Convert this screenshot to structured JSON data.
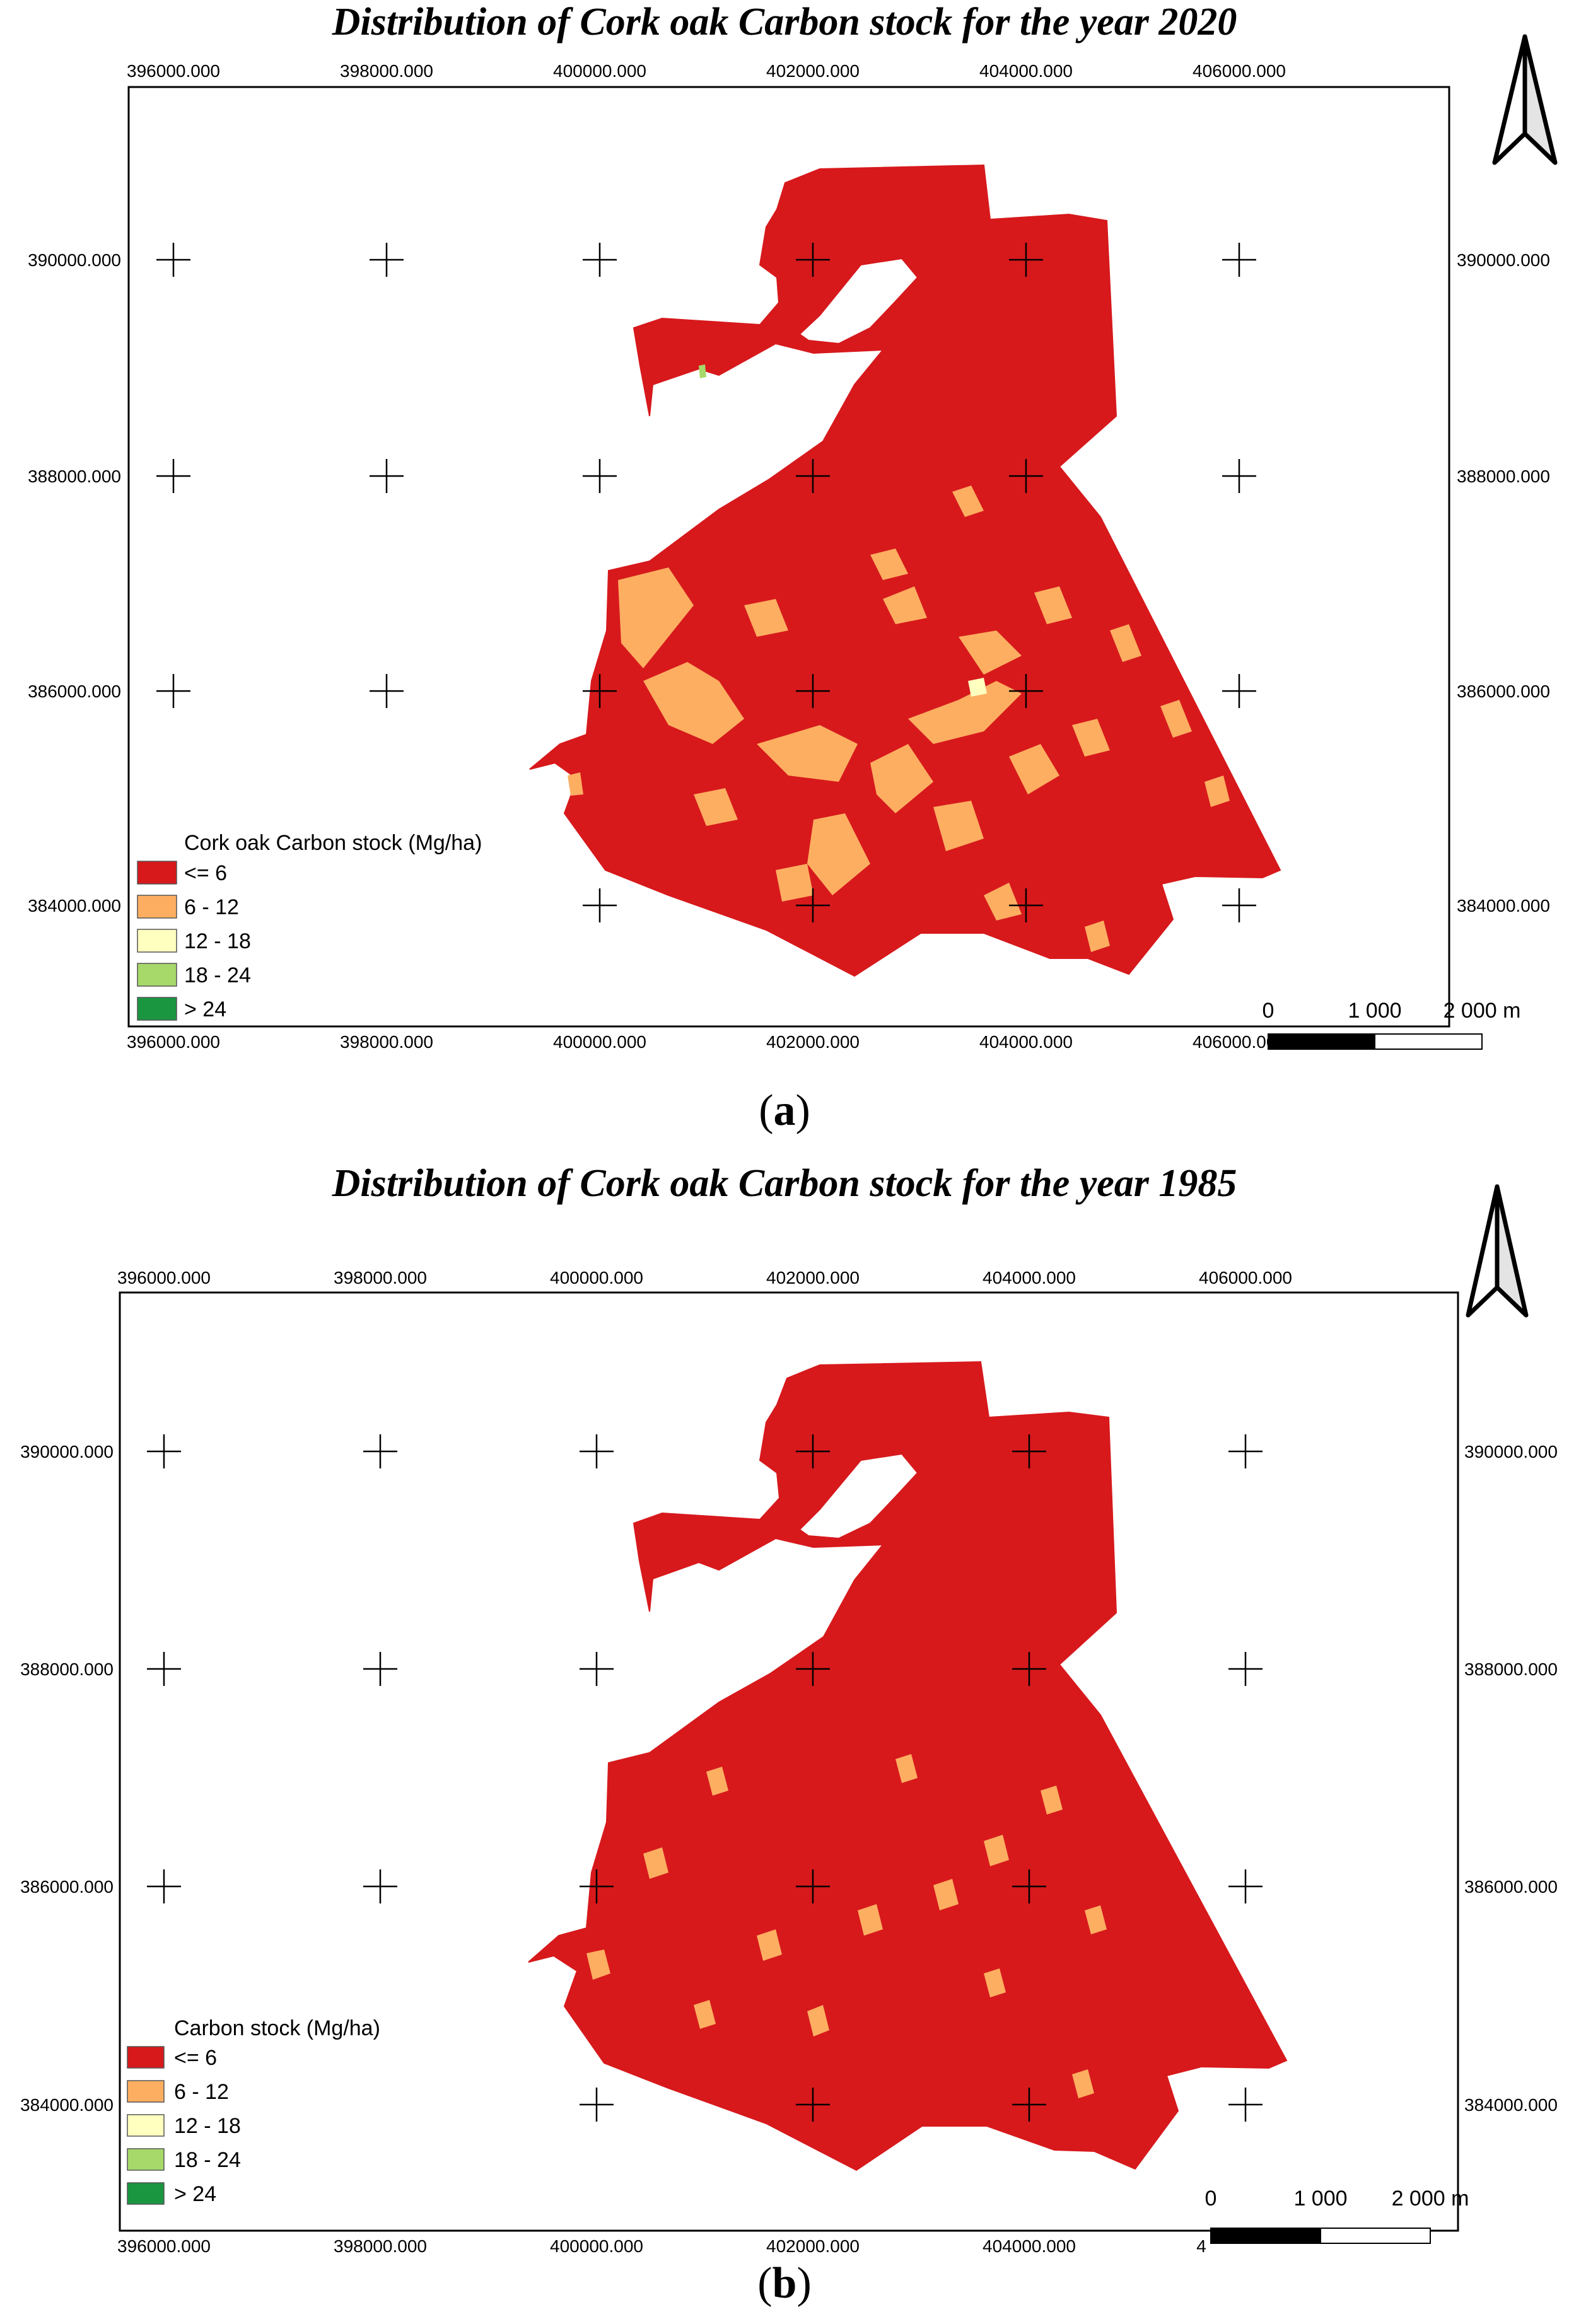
{
  "panels": [
    {
      "id": "a",
      "title": "Distribution of Cork oak Carbon stock for the year 2020",
      "label_open": "(",
      "label_letter": "a",
      "label_close": ")",
      "x_ticks_top": [
        "396000.000",
        "398000.000",
        "400000.000",
        "402000.000",
        "404000.000",
        "406000.000"
      ],
      "x_ticks_bottom": [
        "396000.000",
        "398000.000",
        "400000.000",
        "402000.000",
        "404000.000",
        "406000.000"
      ],
      "y_ticks_left": [
        "390000.000",
        "388000.000",
        "386000.000",
        "384000.000"
      ],
      "y_ticks_right": [
        "390000.000",
        "388000.000",
        "386000.000",
        "384000.000"
      ],
      "legend": {
        "title": "Cork oak Carbon stock (Mg/ha)",
        "classes": [
          {
            "label": "<= 6",
            "color": "#d7191c"
          },
          {
            "label": "6 - 12",
            "color": "#fdae61"
          },
          {
            "label": "12 - 18",
            "color": "#ffffc0"
          },
          {
            "label": "18 - 24",
            "color": "#a6d96a"
          },
          {
            "label": "> 24",
            "color": "#1a9641"
          }
        ]
      },
      "scale_bar": {
        "labels": [
          "0",
          "1 000",
          "2 000 m"
        ]
      }
    },
    {
      "id": "b",
      "title": "Distribution of Cork oak Carbon stock for the year 1985",
      "label_open": "(",
      "label_letter": "b",
      "label_close": ")",
      "x_ticks_top": [
        "396000.000",
        "398000.000",
        "400000.000",
        "402000.000",
        "404000.000",
        "406000.000"
      ],
      "x_ticks_bottom": [
        "396000.000",
        "398000.000",
        "400000.000",
        "402000.000",
        "404000.000",
        "4"
      ],
      "y_ticks_left": [
        "390000.000",
        "388000.000",
        "386000.000",
        "384000.000"
      ],
      "y_ticks_right": [
        "390000.000",
        "388000.000",
        "386000.000",
        "384000.000"
      ],
      "legend": {
        "title": "Carbon stock (Mg/ha)",
        "classes": [
          {
            "label": "<= 6",
            "color": "#d7191c"
          },
          {
            "label": "6 - 12",
            "color": "#fdae61"
          },
          {
            "label": "12 - 18",
            "color": "#ffffc0"
          },
          {
            "label": "18 - 24",
            "color": "#a6d96a"
          },
          {
            "label": "> 24",
            "color": "#1a9641"
          }
        ]
      },
      "scale_bar": {
        "labels": [
          "0",
          "1 000",
          "2 000 m"
        ]
      }
    }
  ],
  "north_arrow_icon": "north-arrow-icon",
  "grid_marker_icon": "crosshair-icon"
}
